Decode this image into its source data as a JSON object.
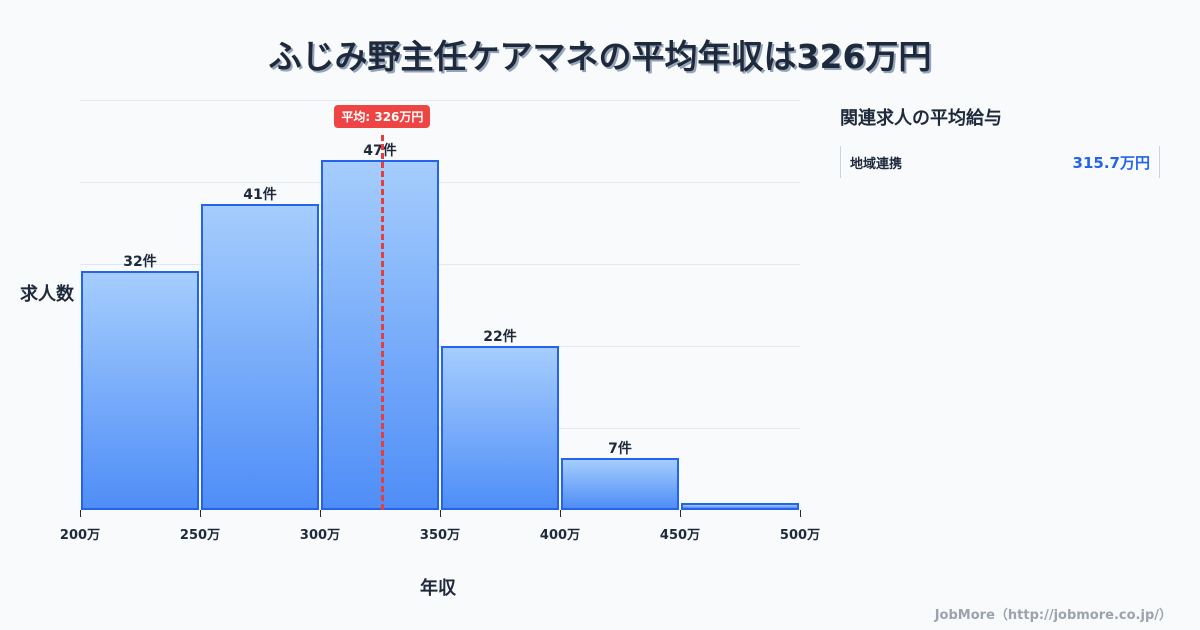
{
  "title": "ふじみ野主任ケアマネの平均年収は326万円",
  "average_badge": "平均: 326万円",
  "axis": {
    "x_title": "年収",
    "y_title": "求人数"
  },
  "side_panel": {
    "title": "関連求人の平均給与",
    "items": [
      {
        "name": "地域連携",
        "value": "315.7万円"
      }
    ]
  },
  "footer": "JobMore（http://jobmore.co.jp/）",
  "colors": {
    "bar_fill_top": "#a5cdfd",
    "bar_fill_bottom": "#4f8ef7",
    "bar_border": "#2563eb",
    "average_line": "#ef4444",
    "accent_value": "#2563eb"
  },
  "chart_data": {
    "type": "bar",
    "title": "ふじみ野主任ケアマネの平均年収は326万円",
    "xlabel": "年収",
    "ylabel": "求人数",
    "x_ticks": [
      "200万",
      "250万",
      "300万",
      "350万",
      "400万",
      "450万",
      "500万"
    ],
    "categories": [
      "200万-250万",
      "250万-300万",
      "300万-350万",
      "350万-400万",
      "400万-450万",
      "450万-500万"
    ],
    "values": [
      32,
      41,
      47,
      22,
      7,
      1
    ],
    "value_labels": [
      "32件",
      "41件",
      "47件",
      "22件",
      "7件",
      ""
    ],
    "average": 326,
    "average_label": "平均: 326万円",
    "ylim": [
      0,
      55
    ],
    "grid": true,
    "gridlines_y": [
      0,
      11,
      22,
      33,
      44,
      55
    ]
  }
}
